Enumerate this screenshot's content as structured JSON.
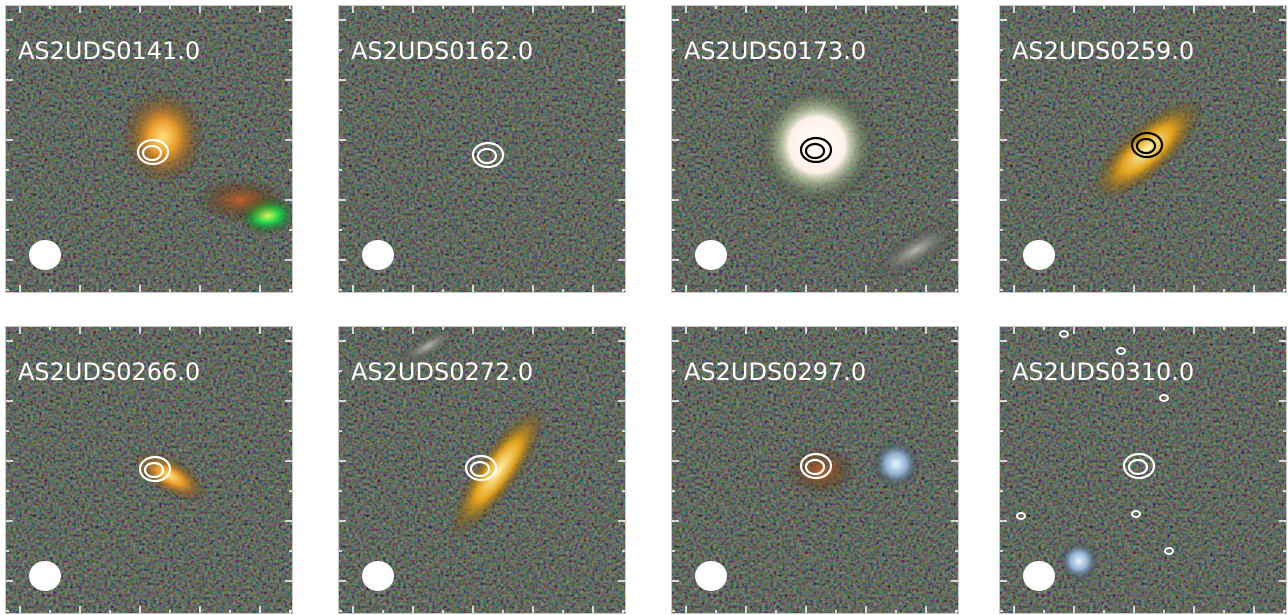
{
  "panels": [
    {
      "label": "AS2UDS0141.0"
    },
    {
      "label": "AS2UDS0162.0"
    },
    {
      "label": "AS2UDS0173.0"
    },
    {
      "label": "AS2UDS0259.0"
    },
    {
      "label": "AS2UDS0266.0"
    },
    {
      "label": "AS2UDS0272.0"
    },
    {
      "label": "AS2UDS0297.0"
    },
    {
      "label": "AS2UDS0310.0"
    }
  ]
}
